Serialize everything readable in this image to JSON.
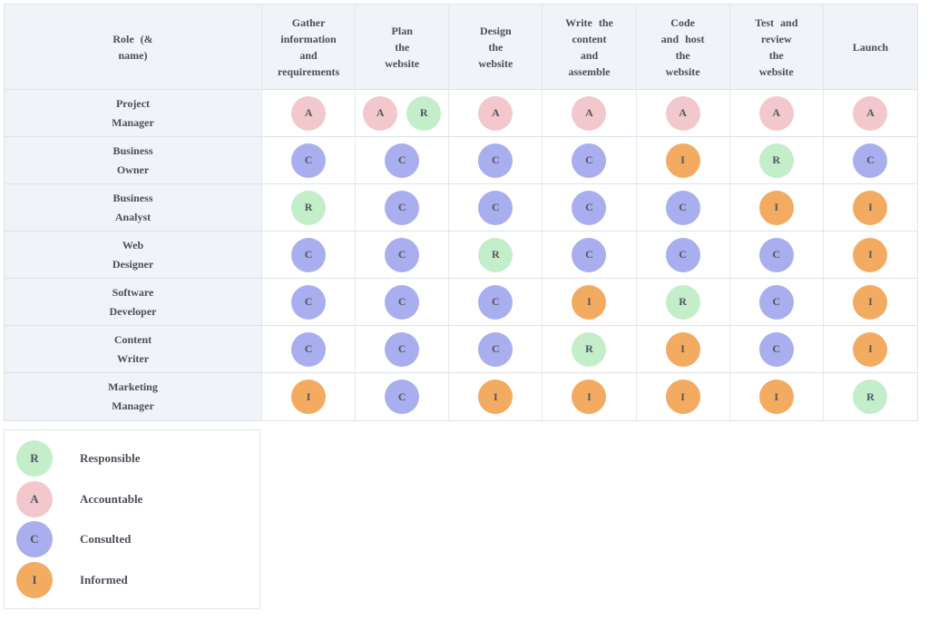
{
  "colors": {
    "responsible_green": "#c3eec9",
    "accountable_pink": "#f3c8cd",
    "consulted_blue": "#a9aeee",
    "informed_orange": "#f2ab61",
    "header_bg": "#f0f3f8",
    "border": "#dde2ea",
    "text": "#4a4f58"
  },
  "badge_colors": {
    "R": "#c3eec9",
    "A": "#f3c8cd",
    "C": "#a9aeee",
    "I": "#f2ab61"
  },
  "matrix": {
    "role_header": "Role (&\nname)",
    "columns": [
      "Gather\ninformation\nand\nrequirements",
      "Plan\nthe\nwebsite",
      "Design\nthe\nwebsite",
      "Write the\ncontent\nand\nassemble",
      "Code\nand host\nthe\nwebsite",
      "Test and\nreview\nthe\nwebsite",
      "Launch"
    ],
    "rows": [
      {
        "role": "Project\nManager",
        "cells": [
          [
            "A"
          ],
          [
            "A",
            "R"
          ],
          [
            "A"
          ],
          [
            "A"
          ],
          [
            "A"
          ],
          [
            "A"
          ],
          [
            "A"
          ]
        ]
      },
      {
        "role": "Business\nOwner",
        "cells": [
          [
            "C"
          ],
          [
            "C"
          ],
          [
            "C"
          ],
          [
            "C"
          ],
          [
            "I"
          ],
          [
            "R"
          ],
          [
            "C"
          ]
        ]
      },
      {
        "role": "Business\nAnalyst",
        "cells": [
          [
            "R"
          ],
          [
            "C"
          ],
          [
            "C"
          ],
          [
            "C"
          ],
          [
            "C"
          ],
          [
            "I"
          ],
          [
            "I"
          ]
        ]
      },
      {
        "role": "Web\nDesigner",
        "cells": [
          [
            "C"
          ],
          [
            "C"
          ],
          [
            "R"
          ],
          [
            "C"
          ],
          [
            "C"
          ],
          [
            "C"
          ],
          [
            "I"
          ]
        ]
      },
      {
        "role": "Software\nDeveloper",
        "cells": [
          [
            "C"
          ],
          [
            "C"
          ],
          [
            "C"
          ],
          [
            "I"
          ],
          [
            "R"
          ],
          [
            "C"
          ],
          [
            "I"
          ]
        ]
      },
      {
        "role": "Content\nWriter",
        "cells": [
          [
            "C"
          ],
          [
            "C"
          ],
          [
            "C"
          ],
          [
            "R"
          ],
          [
            "I"
          ],
          [
            "C"
          ],
          [
            "I"
          ]
        ]
      },
      {
        "role": "Marketing\nManager",
        "cells": [
          [
            "I"
          ],
          [
            "C"
          ],
          [
            "I"
          ],
          [
            "I"
          ],
          [
            "I"
          ],
          [
            "I"
          ],
          [
            "R"
          ]
        ]
      }
    ]
  },
  "legend": [
    {
      "letter": "R",
      "label": "Responsible"
    },
    {
      "letter": "A",
      "label": "Accountable"
    },
    {
      "letter": "C",
      "label": "Consulted"
    },
    {
      "letter": "I",
      "label": "Informed"
    }
  ]
}
